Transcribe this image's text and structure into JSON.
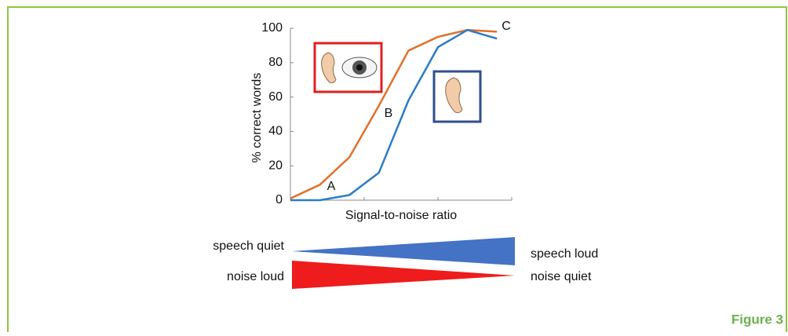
{
  "chart_data": {
    "type": "line",
    "y_label": "% correct words",
    "x_label": "Signal-to-noise ratio",
    "x": [
      0,
      1,
      2,
      3,
      4,
      5,
      6,
      7
    ],
    "xlim": [
      0,
      7.5
    ],
    "xticks": [
      0,
      2.5,
      5,
      7.5
    ],
    "ylim": [
      0,
      100
    ],
    "yticks": [
      0,
      20,
      40,
      60,
      80,
      100
    ],
    "series": [
      {
        "color": "#e0702a",
        "values": [
          1,
          9,
          25,
          55,
          87,
          95,
          99,
          98
        ]
      },
      {
        "color": "#2a7cc7",
        "values": [
          0,
          0,
          3,
          16,
          58,
          89,
          99,
          94
        ]
      }
    ],
    "annotations": [
      "A",
      "B",
      "C"
    ],
    "scale_labels": [
      "speech quiet",
      "speech loud",
      "noise loud",
      "noise quiet"
    ],
    "caption": "Figure 3"
  }
}
